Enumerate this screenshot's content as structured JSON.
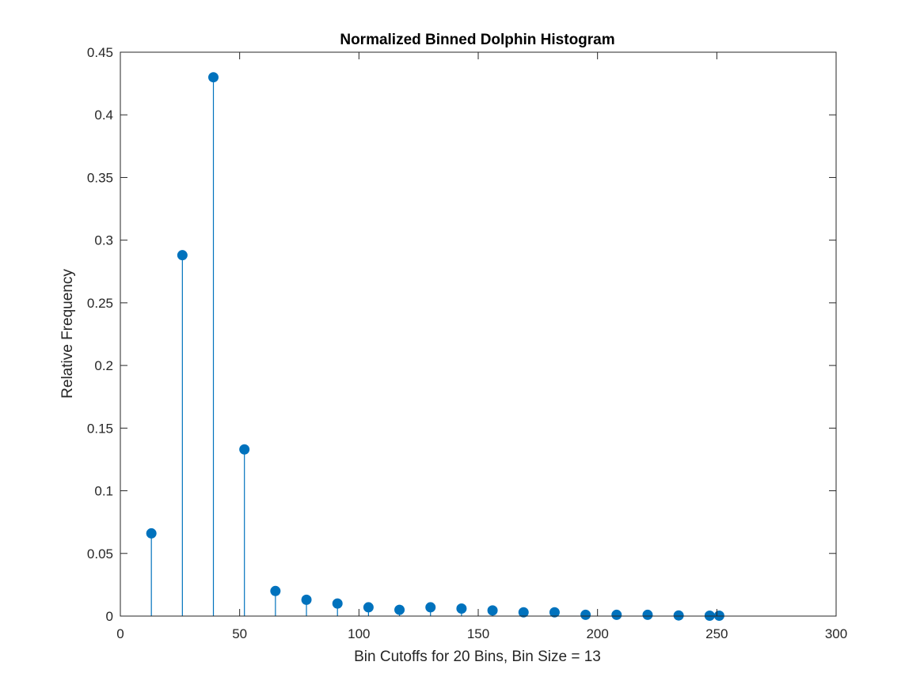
{
  "chart_data": {
    "type": "stem",
    "title": "Normalized Binned Dolphin Histogram",
    "xlabel": "Bin Cutoffs for 20 Bins, Bin Size = 13",
    "ylabel": "Relative Frequency",
    "xlim": [
      0,
      300
    ],
    "ylim": [
      0,
      0.45
    ],
    "xticks": [
      0,
      50,
      100,
      150,
      200,
      250,
      300
    ],
    "xtick_labels": [
      "0",
      "50",
      "100",
      "150",
      "200",
      "250",
      "300"
    ],
    "yticks": [
      0,
      0.05,
      0.1,
      0.15,
      0.2,
      0.25,
      0.3,
      0.35,
      0.4,
      0.45
    ],
    "ytick_labels": [
      "0",
      "0.05",
      "0.1",
      "0.15",
      "0.2",
      "0.25",
      "0.3",
      "0.35",
      "0.4",
      "0.45"
    ],
    "grid": false,
    "series": [
      {
        "name": "relative frequency",
        "color": "#0072BD",
        "x": [
          13,
          26,
          39,
          52,
          65,
          78,
          91,
          104,
          117,
          130,
          143,
          156,
          169,
          182,
          195,
          208,
          221,
          234,
          247,
          251
        ],
        "y": [
          0.066,
          0.288,
          0.43,
          0.133,
          0.02,
          0.013,
          0.01,
          0.007,
          0.005,
          0.007,
          0.006,
          0.0045,
          0.003,
          0.003,
          0.001,
          0.001,
          0.001,
          0.0005,
          0.0003,
          0.0003
        ]
      }
    ]
  },
  "colors": {
    "axis": "#262626",
    "stem": "#0072BD",
    "background": "#ffffff"
  }
}
